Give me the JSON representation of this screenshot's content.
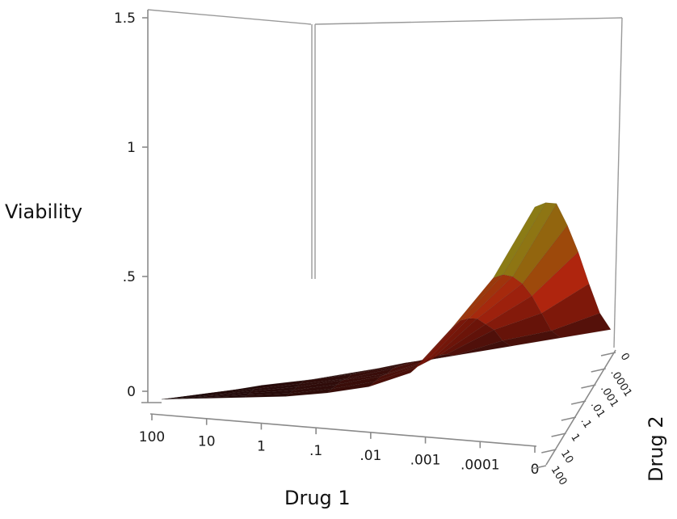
{
  "chart_data": {
    "type": "surface",
    "xlabel": "Drug 1",
    "ylabel": "Drug 2",
    "zlabel": "Viability",
    "x_ticks": [
      "100",
      "10",
      "1",
      ".1",
      ".01",
      ".001",
      ".0001",
      "0"
    ],
    "y_ticks": [
      "0",
      ".0001",
      ".001",
      ".01",
      ".1",
      "1",
      "10",
      "100"
    ],
    "z_ticks": [
      "0",
      ".5",
      "1",
      "1.5"
    ],
    "zlim": [
      0,
      1.5
    ],
    "viability_grid": [
      [
        0.0,
        0.01,
        0.02,
        0.03,
        0.05,
        0.08,
        0.14,
        0.32,
        0.52,
        0.8
      ],
      [
        0.0,
        0.01,
        0.02,
        0.03,
        0.05,
        0.08,
        0.14,
        0.32,
        0.5,
        0.78
      ],
      [
        0.0,
        0.01,
        0.02,
        0.03,
        0.05,
        0.08,
        0.13,
        0.3,
        0.46,
        0.74
      ],
      [
        0.0,
        0.01,
        0.02,
        0.03,
        0.05,
        0.07,
        0.12,
        0.27,
        0.4,
        0.62
      ],
      [
        0.0,
        0.01,
        0.02,
        0.03,
        0.04,
        0.07,
        0.11,
        0.22,
        0.32,
        0.48
      ],
      [
        0.0,
        0.01,
        0.02,
        0.03,
        0.04,
        0.06,
        0.09,
        0.17,
        0.22,
        0.32
      ],
      [
        0.0,
        0.0,
        0.01,
        0.02,
        0.03,
        0.05,
        0.06,
        0.1,
        0.12,
        0.17
      ],
      [
        0.0,
        0.0,
        0.01,
        0.01,
        0.02,
        0.03,
        0.04,
        0.05,
        0.06,
        0.07
      ]
    ],
    "grid": true,
    "colormap": [
      "#2a0d0d",
      "#8b1a0a",
      "#c42a10",
      "#b8860b",
      "#9a9a20",
      "#5c5c40"
    ]
  }
}
